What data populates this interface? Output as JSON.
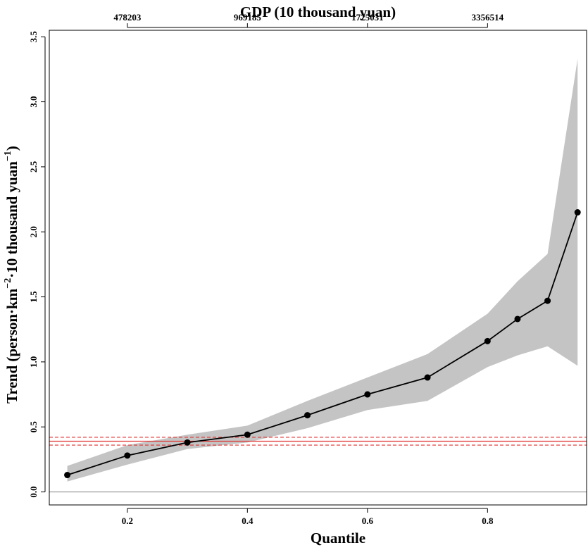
{
  "chart_data": {
    "type": "line",
    "title": "",
    "xlabel": "Quantile",
    "ylabel": "Trend (person·km⁻²·10 thousand yuan⁻¹)",
    "ylabel_parts": {
      "prefix": "Trend (person·km",
      "sup1": "−2",
      "middle": "·10 thousand yuan",
      "sup2": "−1",
      "suffix": ")"
    },
    "top_xlabel": "GDP (10 thousand yuan)",
    "xlim": [
      0.07,
      0.965
    ],
    "ylim": [
      -0.1,
      3.55
    ],
    "x_ticks": [
      0.2,
      0.4,
      0.6,
      0.8
    ],
    "x_tick_labels": [
      "0.2",
      "0.4",
      "0.6",
      "0.8"
    ],
    "y_ticks": [
      0.0,
      0.5,
      1.0,
      1.5,
      2.0,
      2.5,
      3.0,
      3.5
    ],
    "y_tick_labels": [
      "0.0",
      "0.5",
      "1.0",
      "1.5",
      "2.0",
      "2.5",
      "3.0",
      "3.5"
    ],
    "top_ticks": [
      0.2,
      0.4,
      0.6,
      0.8
    ],
    "top_tick_labels": [
      "478203",
      "969185",
      "1725031",
      "3356514"
    ],
    "grid": false,
    "series": [
      {
        "x": [
          0.1,
          0.2,
          0.3,
          0.4,
          0.5,
          0.6,
          0.7,
          0.8,
          0.85,
          0.9,
          0.95
        ],
        "values": [
          0.13,
          0.28,
          0.38,
          0.44,
          0.59,
          0.75,
          0.88,
          1.16,
          1.33,
          1.47,
          2.15
        ],
        "lower": [
          0.08,
          0.21,
          0.33,
          0.38,
          0.49,
          0.63,
          0.7,
          0.96,
          1.05,
          1.12,
          0.97
        ],
        "upper": [
          0.2,
          0.36,
          0.44,
          0.51,
          0.7,
          0.88,
          1.06,
          1.37,
          1.62,
          1.83,
          3.33
        ]
      }
    ],
    "reference_lines": {
      "zero": 0.0,
      "ols": 0.39,
      "ols_ci": [
        0.36,
        0.42
      ],
      "ols_color": "#e03030",
      "zero_color": "#9a9a9a"
    },
    "band_color": "#c4c4c4",
    "line_color": "#000000"
  }
}
